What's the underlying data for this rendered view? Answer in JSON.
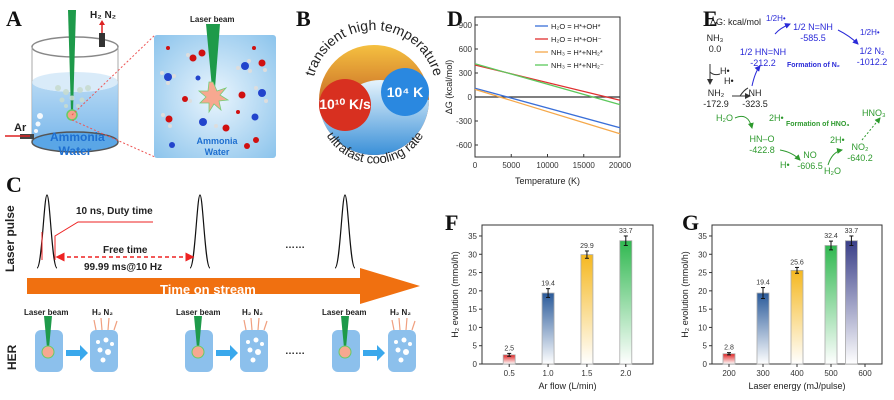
{
  "panels": {
    "A": {
      "letter": "A",
      "gas_out_label": "H₂ N₂",
      "ar_label": "Ar",
      "beaker_liquid_label_1": "Ammonia",
      "beaker_liquid_label_2": "Water",
      "zoom_laser_label": "Laser beam",
      "zoom_liquid_label_1": "Ammonia",
      "zoom_liquid_label_2": "Water"
    },
    "B": {
      "letter": "B",
      "top_arc_text": "transient high temperature",
      "bottom_arc_text": "ultrafast cooling rate",
      "cooling_rate": "10¹⁰ K/s",
      "temperature": "10⁴ K"
    },
    "C": {
      "letter": "C",
      "row1_label": "Laser pulse",
      "row2_label": "HER",
      "duty_time": "10 ns, Duty time",
      "free_time": "Free time",
      "free_time_value": "99.99 ms@10 Hz",
      "ellipsis": "……",
      "stream_label": "Time on stream",
      "laser_beam_label": "Laser beam",
      "gas_label": "H₂  N₂"
    },
    "E": {
      "letter": "E",
      "unit": "ΔG: kcal/mol",
      "nodes": {
        "nh3": "NH₃",
        "nh3_val": "0.0",
        "h1": "H•",
        "h2": "H•",
        "nh2": "NH₂",
        "nh2_val": "-172.9",
        "nh": "NH",
        "nh_val": "-323.5",
        "hnnh": "1/2 HN=NH",
        "hnnh_val": "-212.2",
        "half_h1": "1/2H•",
        "nnh": "1/2 N=NH",
        "nnh_val": "-585.5",
        "half_h2": "1/2H•",
        "n2": "1/2 N₂",
        "n2_val": "-1012.2",
        "formation_n2": "Formation of N₂",
        "h2o_1": "H₂O",
        "two_h_1": "2H•",
        "formation_hno3": "Formation of HNO₃",
        "hno": "HN–O",
        "hno_val": "-422.8",
        "h3": "H•",
        "no": "NO",
        "no_val": "-606.5",
        "two_h_2": "2H•",
        "h2o_2": "H₂O",
        "no2": "NO₂",
        "no2_val": "-640.2",
        "hno3": "HNO₃"
      }
    }
  },
  "colors": {
    "blue_series": "#3a6fd8",
    "red_series": "#e03030",
    "orange_series": "#f5a84a",
    "green_series": "#5cc85c",
    "n2_path": "#2a2ad8",
    "hno3_path": "#2e9a2e",
    "stream_arrow": "#f07010",
    "laser_green": "#1e9a4a"
  },
  "chart_data": [
    {
      "id": "D",
      "letter": "D",
      "type": "line",
      "title": "",
      "xlabel": "Temperature (K)",
      "ylabel": "ΔG (kcal/mol)",
      "xlim": [
        0,
        20000
      ],
      "ylim": [
        -750,
        1000
      ],
      "xticks": [
        0,
        5000,
        10000,
        15000,
        20000
      ],
      "yticks": [
        -600,
        -300,
        0,
        300,
        600,
        900
      ],
      "legend_position": "top-right",
      "series": [
        {
          "name": "H₂O = H*+OH*",
          "color": "#3a6fd8",
          "x": [
            0,
            20000
          ],
          "y": [
            110,
            -385
          ]
        },
        {
          "name": "H₂O = H*+OH⁻",
          "color": "#e03030",
          "x": [
            0,
            20000
          ],
          "y": [
            400,
            -40
          ]
        },
        {
          "name": "NH₃ = H*+NH₂*",
          "color": "#f5a84a",
          "x": [
            0,
            20000
          ],
          "y": [
            95,
            -460
          ]
        },
        {
          "name": "NH₃ = H*+NH₂⁻",
          "color": "#5cc85c",
          "x": [
            0,
            20000
          ],
          "y": [
            415,
            -95
          ]
        }
      ],
      "reference_line": 0
    },
    {
      "id": "F",
      "letter": "F",
      "type": "bar",
      "xlabel": "Ar flow (L/min)",
      "ylabel": "H₂ evolution (mmol/h)",
      "categories": [
        "0.5",
        "1.0",
        "1.5",
        "2.0"
      ],
      "values": [
        2.5,
        19.4,
        29.9,
        33.7
      ],
      "errors": [
        0.4,
        1.2,
        1.0,
        1.3
      ],
      "labels": [
        "2.5",
        "19.4",
        "29.9",
        "33.7"
      ],
      "bar_colors": [
        "#e02020",
        "#2a5a9a",
        "#f5b820",
        "#30b850"
      ],
      "ylim": [
        0,
        38
      ],
      "yticks": [
        0,
        5,
        10,
        15,
        20,
        25,
        30,
        35
      ]
    },
    {
      "id": "G",
      "letter": "G",
      "type": "bar",
      "xlabel": "Laser energy (mJ/pulse)",
      "ylabel": "H₂ evolution (mmol/h)",
      "x": [
        200,
        300,
        400,
        500,
        560
      ],
      "xticks": [
        200,
        300,
        400,
        500,
        600
      ],
      "xlim": [
        150,
        650
      ],
      "values": [
        2.8,
        19.4,
        25.6,
        32.4,
        33.7
      ],
      "errors": [
        0.3,
        1.5,
        0.8,
        1.2,
        1.3
      ],
      "labels": [
        "2.8",
        "19.4",
        "25.6",
        "32.4",
        "33.7"
      ],
      "bar_colors": [
        "#e02020",
        "#2a5a9a",
        "#f5b820",
        "#30b850",
        "#3a3f88"
      ],
      "ylim": [
        0,
        38
      ],
      "yticks": [
        0,
        5,
        10,
        15,
        20,
        25,
        30,
        35
      ]
    }
  ]
}
